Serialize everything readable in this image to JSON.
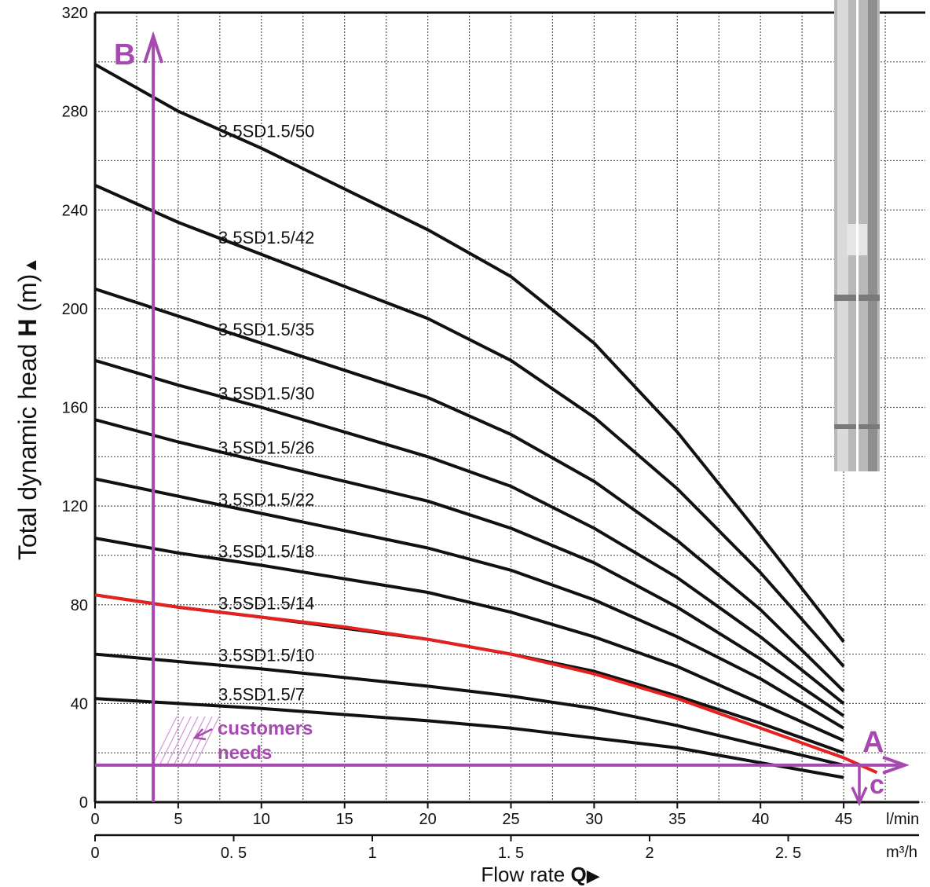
{
  "chart_data": {
    "type": "line",
    "ylabel_prefix": "Total dynamic head ",
    "ylabel_var": "H",
    "ylabel_unit": " (m)",
    "ylabel_marker": "▲",
    "xlabel_prefix": "Flow rate ",
    "xlabel_var": "Q",
    "xlabel_marker": "▶",
    "ylim": [
      0,
      320
    ],
    "xlim": [
      0,
      50
    ],
    "y_ticks": [
      "0",
      "40",
      "80",
      "120",
      "160",
      "200",
      "240",
      "280",
      "320"
    ],
    "x_ticks_lmin": [
      "0",
      "5",
      "10",
      "15",
      "20",
      "25",
      "30",
      "35",
      "40",
      "45"
    ],
    "x_unit_lmin": "l/min",
    "x_ticks_m3h": [
      "0",
      "0. 5",
      "1",
      "1. 5",
      "2",
      "2. 5"
    ],
    "x_unit_m3h": "m³/h",
    "grid": true,
    "series": [
      {
        "name": "3.5SD1.5/50",
        "x": [
          0,
          5,
          10,
          20,
          25,
          30,
          35,
          40,
          45
        ],
        "y": [
          299,
          280,
          265,
          232,
          213,
          186,
          150,
          108,
          65
        ]
      },
      {
        "name": "3.5SD1.5/42",
        "x": [
          0,
          5,
          10,
          20,
          25,
          30,
          35,
          40,
          45
        ],
        "y": [
          250,
          235,
          222,
          196,
          179,
          156,
          127,
          93,
          55
        ]
      },
      {
        "name": "3.5SD1.5/35",
        "x": [
          0,
          5,
          10,
          20,
          25,
          30,
          35,
          40,
          45
        ],
        "y": [
          208,
          197,
          186,
          164,
          149,
          130,
          106,
          78,
          45
        ]
      },
      {
        "name": "3.5SD1.5/30",
        "x": [
          0,
          5,
          10,
          20,
          25,
          30,
          35,
          40,
          45
        ],
        "y": [
          179,
          169,
          160,
          140,
          128,
          111,
          91,
          67,
          40
        ]
      },
      {
        "name": "3.5SD1.5/26",
        "x": [
          0,
          5,
          10,
          20,
          25,
          30,
          35,
          40,
          45
        ],
        "y": [
          155,
          146,
          138,
          122,
          111,
          97,
          79,
          58,
          35
        ]
      },
      {
        "name": "3.5SD1.5/22",
        "x": [
          0,
          5,
          10,
          20,
          25,
          30,
          35,
          40,
          45
        ],
        "y": [
          131,
          124,
          117,
          103,
          94,
          82,
          67,
          50,
          30
        ]
      },
      {
        "name": "3.5SD1.5/18",
        "x": [
          0,
          5,
          10,
          20,
          25,
          30,
          35,
          40,
          45
        ],
        "y": [
          107,
          101,
          96,
          85,
          77,
          67,
          55,
          40,
          25
        ]
      },
      {
        "name": "3.5SD1.5/14",
        "x": [
          0,
          5,
          10,
          20,
          25,
          30,
          35,
          40,
          45
        ],
        "y": [
          84,
          79,
          75,
          66,
          60,
          53,
          43,
          32,
          20
        ]
      },
      {
        "name": "3.5SD1.5/10",
        "x": [
          0,
          5,
          10,
          20,
          25,
          30,
          35,
          40,
          45
        ],
        "y": [
          60,
          57,
          54,
          47,
          43,
          38,
          31,
          23,
          15
        ]
      },
      {
        "name": "3.5SD1.5/7",
        "x": [
          0,
          5,
          10,
          20,
          25,
          30,
          35,
          40,
          45
        ],
        "y": [
          42,
          40,
          38,
          33,
          30,
          26,
          22,
          16,
          10
        ]
      }
    ],
    "highlight": {
      "color": "#e62020",
      "x": [
        0,
        5,
        10,
        15,
        20,
        25,
        30,
        35,
        40,
        45,
        47
      ],
      "y": [
        84,
        79,
        75,
        71,
        66,
        60,
        52,
        42,
        30,
        18,
        12
      ]
    },
    "annotations": {
      "color": "#a64ab0",
      "point_b": "B",
      "point_a": "A",
      "point_c": "c",
      "vertical_line_x": 3.5,
      "horizontal_line_y": 15,
      "customers_line1": "customers",
      "customers_line2": "needs"
    }
  }
}
